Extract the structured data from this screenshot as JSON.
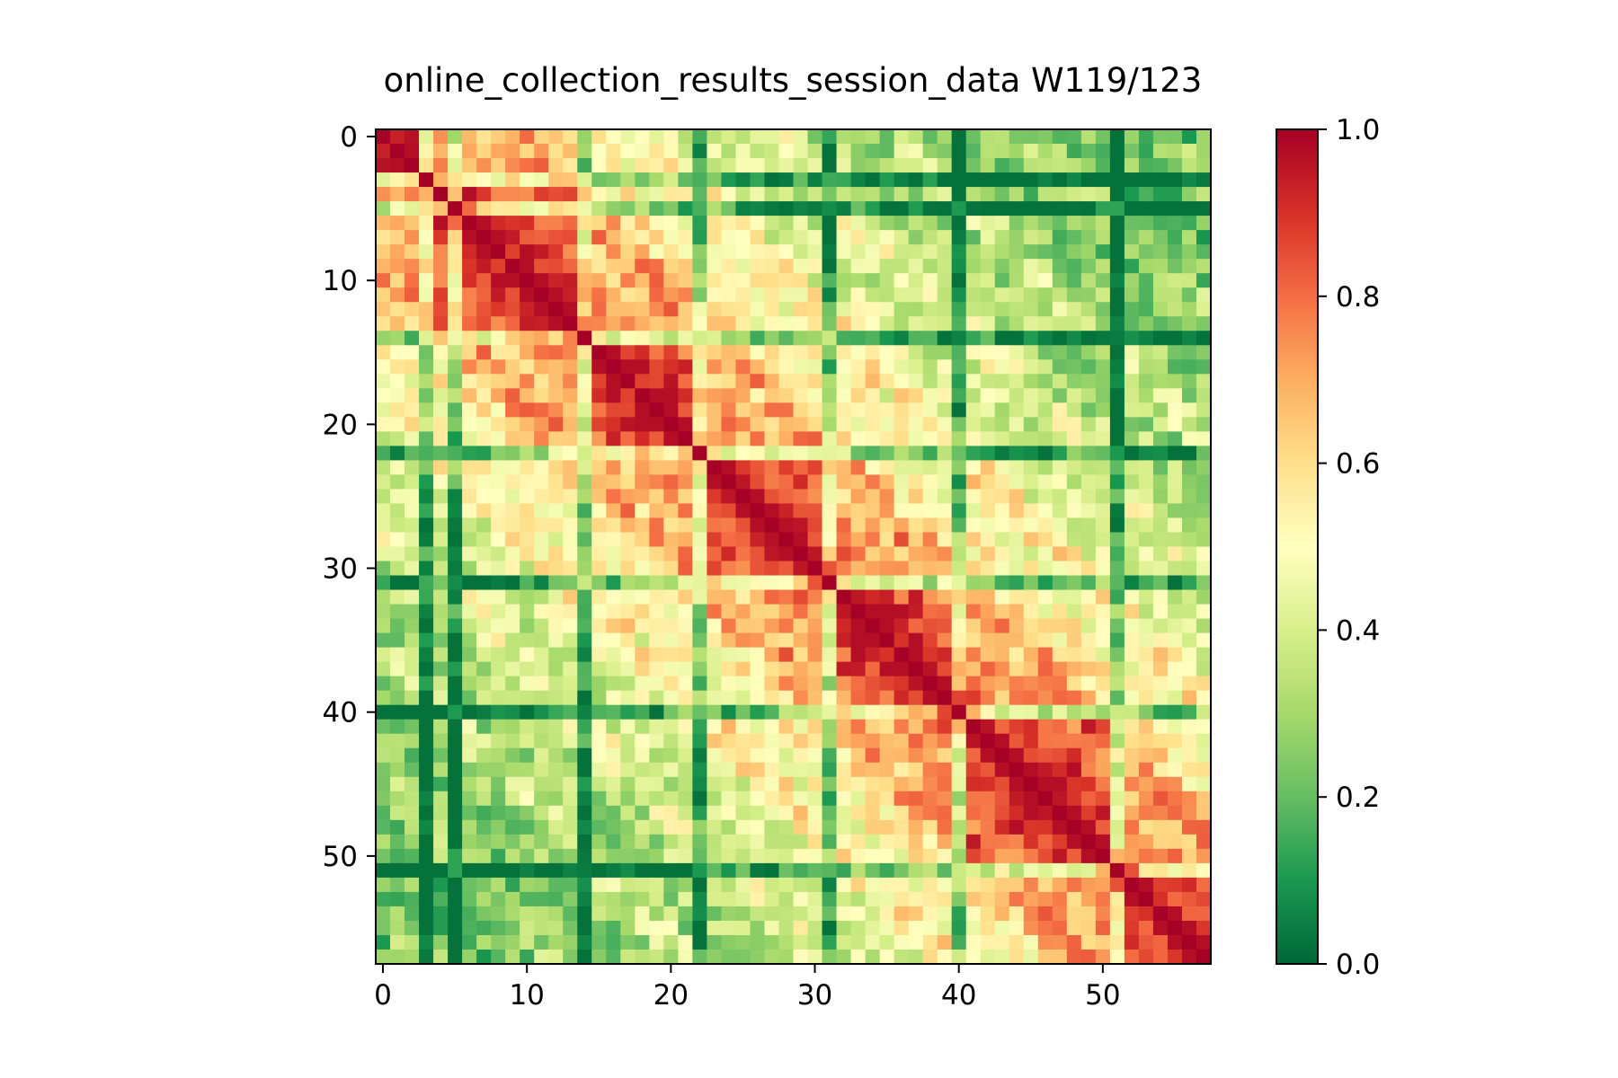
{
  "chart_data": {
    "type": "heatmap",
    "title": "online_collection_results_session_data W119/123",
    "xlabel": "",
    "ylabel": "",
    "n": 58,
    "x_ticks": [
      0,
      10,
      20,
      30,
      40,
      50
    ],
    "y_ticks": [
      0,
      10,
      20,
      30,
      40,
      50
    ],
    "xlim": [
      -0.5,
      57.5
    ],
    "ylim": [
      57.5,
      -0.5
    ],
    "colormap": "RdYlGn_r",
    "colormap_stops": [
      "#006837",
      "#1a9850",
      "#66bd63",
      "#a6d96a",
      "#d9ef8b",
      "#ffffbf",
      "#fee08b",
      "#fdae61",
      "#f46d43",
      "#d73027",
      "#a50026"
    ],
    "colorbar": {
      "vmin": 0.0,
      "vmax": 1.0,
      "ticks": [
        0.0,
        0.2,
        0.4,
        0.6,
        0.8,
        1.0
      ],
      "tick_labels": [
        "0.0",
        "0.2",
        "0.4",
        "0.6",
        "0.8",
        "1.0"
      ]
    },
    "diagonal_value": 1.0,
    "block_groups": [
      [
        0,
        1,
        2
      ],
      [
        3,
        4,
        5,
        6,
        7,
        8,
        9,
        10,
        11,
        12,
        13,
        14
      ],
      [
        15,
        16,
        17,
        18,
        19,
        20,
        21,
        22
      ],
      [
        23,
        24,
        25,
        26,
        27,
        28,
        29,
        30,
        31
      ],
      [
        32,
        33,
        34,
        35,
        36,
        37,
        38,
        39,
        40
      ],
      [
        41,
        42,
        43,
        44,
        45,
        46,
        47,
        48,
        49,
        50
      ],
      [
        51,
        52,
        53,
        54,
        55,
        56,
        57
      ]
    ],
    "low_correlation_rows": [
      3,
      5,
      14,
      22,
      31,
      40,
      51
    ],
    "grid": false
  }
}
